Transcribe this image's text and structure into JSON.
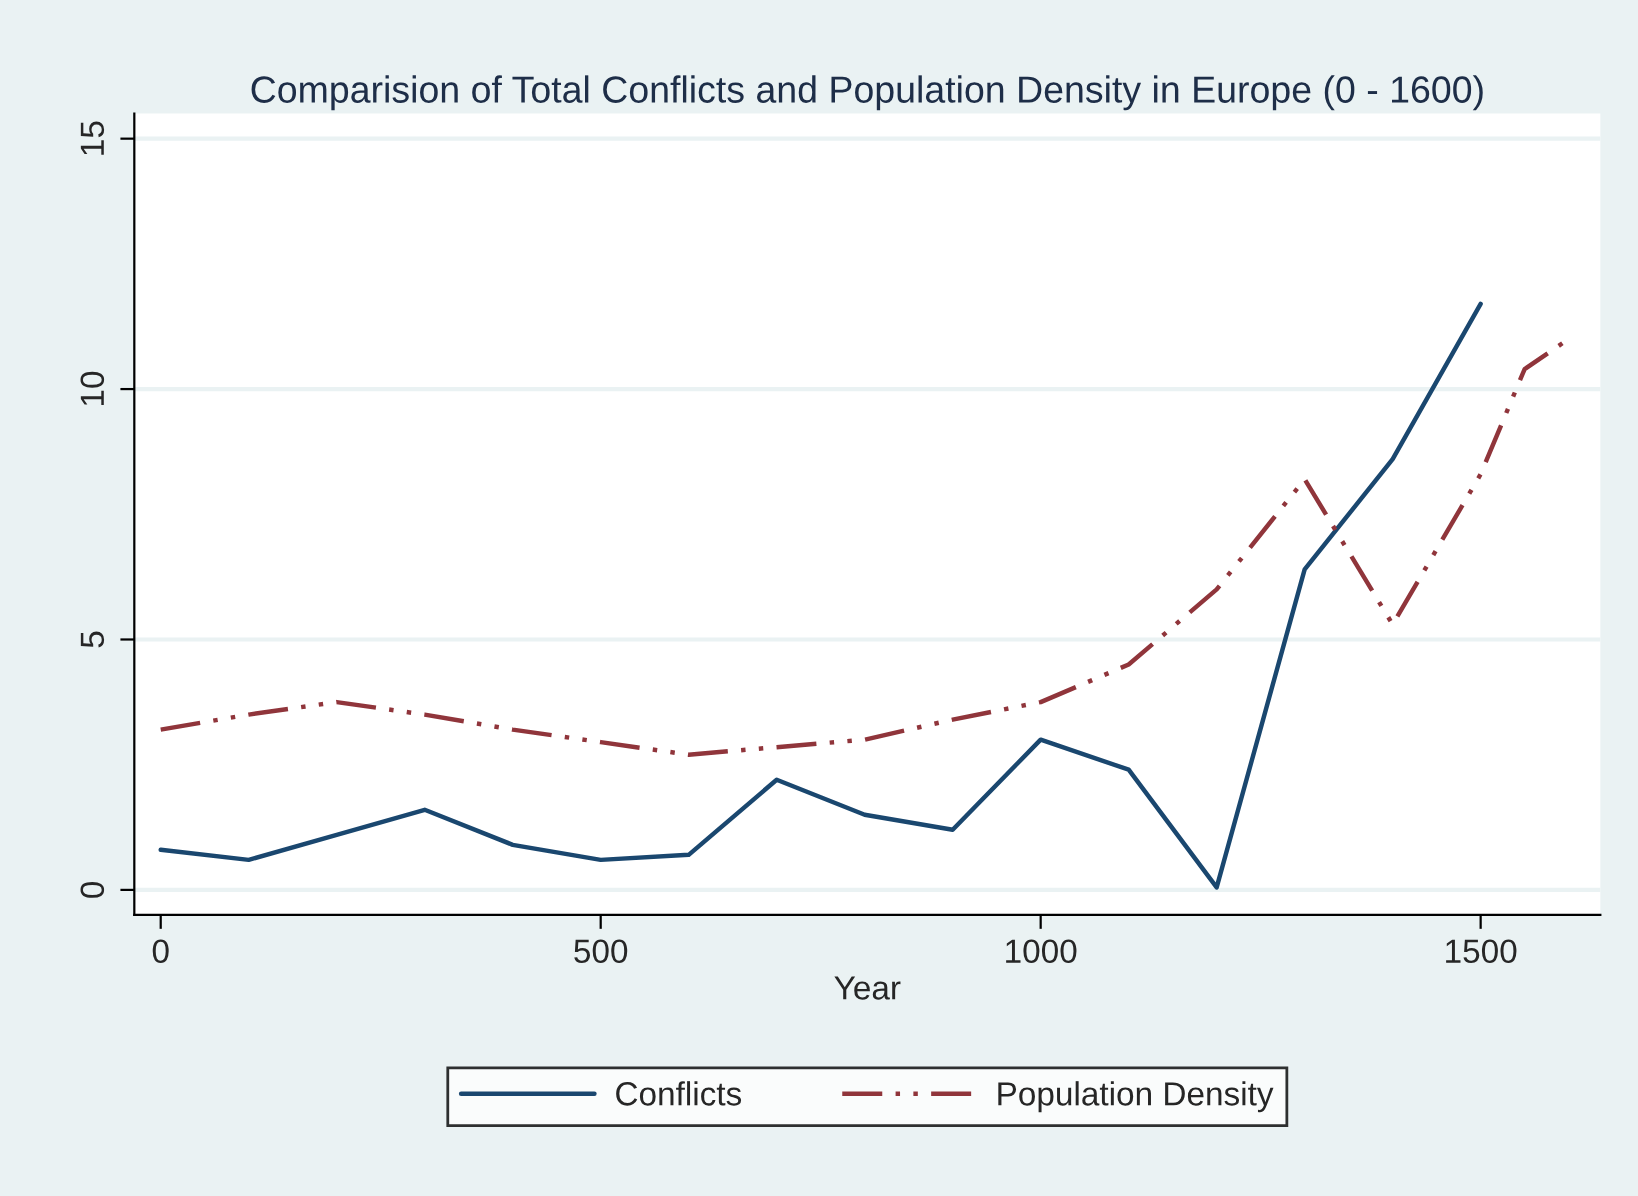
{
  "chart_data": {
    "type": "line",
    "title": "Comparision of Total Conflicts and Population Density in Europe (0 - 1600)",
    "xlabel": "Year",
    "xlim": [
      -30,
      1636
    ],
    "xticks": [
      0,
      500,
      1000,
      1500
    ],
    "ylim": [
      -0.5,
      15.5
    ],
    "yticks": [
      0,
      5,
      10,
      15
    ],
    "grid": "y",
    "legend": "bottom",
    "marker": "none",
    "series": [
      {
        "name": "Conflicts",
        "color": "#1a476f",
        "line_style": "solid",
        "x": [
          0,
          100,
          200,
          300,
          400,
          500,
          600,
          700,
          800,
          900,
          1000,
          1100,
          1200,
          1300,
          1400,
          1500
        ],
        "values": [
          0.8,
          0.6,
          1.1,
          1.6,
          0.9,
          0.6,
          0.7,
          2.2,
          1.5,
          1.2,
          3.0,
          2.4,
          0.05,
          6.4,
          8.6,
          11.7
        ]
      },
      {
        "name": "Population Density",
        "color": "#90353b",
        "line_style": "dashed",
        "x": [
          0,
          100,
          200,
          300,
          400,
          500,
          600,
          700,
          800,
          900,
          1000,
          1100,
          1200,
          1300,
          1400,
          1500,
          1550,
          1600
        ],
        "values": [
          3.2,
          3.5,
          3.75,
          3.5,
          3.2,
          2.95,
          2.7,
          2.85,
          3.0,
          3.4,
          3.75,
          4.5,
          6.0,
          8.2,
          5.3,
          8.3,
          10.4,
          11.0
        ]
      }
    ]
  }
}
